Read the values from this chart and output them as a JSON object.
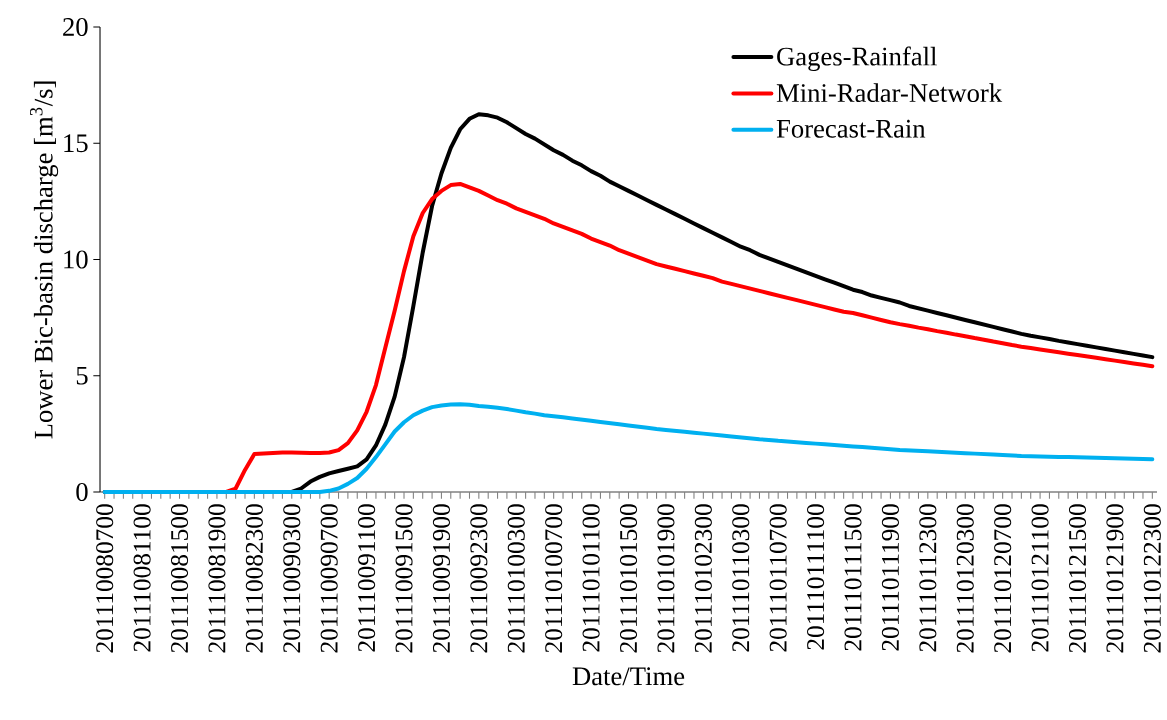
{
  "chart_data": {
    "type": "line",
    "xlabel": "Date/Time",
    "ylabel": "Lower Bic-basin discharge [m$^{3}$/s]",
    "categories": [
      "201110080700",
      null,
      null,
      null,
      "201110081100",
      null,
      null,
      null,
      "201110081500",
      null,
      null,
      null,
      "201110081900",
      null,
      null,
      null,
      "201110082300",
      null,
      null,
      null,
      "201110090300",
      null,
      null,
      null,
      "201110090700",
      null,
      null,
      null,
      "201110091100",
      null,
      null,
      null,
      "201110091500",
      null,
      null,
      null,
      "201110091900",
      null,
      null,
      null,
      "201110092300",
      null,
      null,
      null,
      "201110100300",
      null,
      null,
      null,
      "201110100700",
      null,
      null,
      null,
      "201110101100",
      null,
      null,
      null,
      "201110101500",
      null,
      null,
      null,
      "201110101900",
      null,
      null,
      null,
      "201110102300",
      null,
      null,
      null,
      "201110110300",
      null,
      null,
      null,
      "201110110700",
      null,
      null,
      null,
      "201110111100",
      null,
      null,
      null,
      "201110111500",
      null,
      null,
      null,
      "201110111900",
      null,
      null,
      null,
      "201110112300",
      null,
      null,
      null,
      "201110120300",
      null,
      null,
      null,
      "201110120700",
      null,
      null,
      null,
      "201110121100",
      null,
      null,
      null,
      "201110121500",
      null,
      null,
      null,
      "201110121900",
      null,
      null,
      null,
      "201110122300"
    ],
    "series": [
      {
        "name": "Gages-Rainfall",
        "color": "#000000",
        "values": [
          0,
          0,
          0,
          0,
          0,
          0,
          0,
          0,
          0,
          0,
          0,
          0,
          0,
          0,
          0,
          0,
          0,
          0,
          0,
          0,
          0,
          0.15,
          0.45,
          0.65,
          0.8,
          0.9,
          1.0,
          1.1,
          1.4,
          2.0,
          2.9,
          4.1,
          5.8,
          8.0,
          10.3,
          12.3,
          13.7,
          14.8,
          15.6,
          16.05,
          16.25,
          16.2,
          16.1,
          15.9,
          15.65,
          15.4,
          15.2,
          14.95,
          14.7,
          14.5,
          14.25,
          14.05,
          13.8,
          13.6,
          13.35,
          13.15,
          12.95,
          12.75,
          12.55,
          12.35,
          12.15,
          11.95,
          11.75,
          11.55,
          11.35,
          11.15,
          10.95,
          10.75,
          10.55,
          10.4,
          10.2,
          10.05,
          9.9,
          9.75,
          9.6,
          9.45,
          9.3,
          9.15,
          9.0,
          8.85,
          8.7,
          8.6,
          8.45,
          8.35,
          8.25,
          8.15,
          8.0,
          7.9,
          7.8,
          7.7,
          7.6,
          7.5,
          7.4,
          7.3,
          7.2,
          7.1,
          7.0,
          6.9,
          6.8,
          6.72,
          6.65,
          6.58,
          6.5,
          6.43,
          6.36,
          6.29,
          6.22,
          6.15,
          6.08,
          6.01,
          5.94,
          5.87,
          5.8
        ]
      },
      {
        "name": "Mini-Radar-Network",
        "color": "#ff0000",
        "values": [
          null,
          null,
          null,
          null,
          null,
          null,
          null,
          null,
          null,
          null,
          null,
          null,
          0,
          0,
          0.15,
          0.95,
          1.63,
          1.66,
          1.68,
          1.7,
          1.7,
          1.69,
          1.68,
          1.68,
          1.7,
          1.8,
          2.1,
          2.65,
          3.45,
          4.6,
          6.2,
          7.8,
          9.5,
          11.0,
          12.0,
          12.6,
          12.95,
          13.2,
          13.25,
          13.1,
          12.95,
          12.75,
          12.55,
          12.4,
          12.2,
          12.05,
          11.9,
          11.75,
          11.55,
          11.4,
          11.25,
          11.1,
          10.9,
          10.75,
          10.6,
          10.4,
          10.25,
          10.1,
          9.95,
          9.8,
          9.7,
          9.6,
          9.5,
          9.4,
          9.3,
          9.2,
          9.05,
          8.95,
          8.85,
          8.75,
          8.65,
          8.55,
          8.45,
          8.35,
          8.25,
          8.15,
          8.05,
          7.95,
          7.85,
          7.75,
          7.7,
          7.6,
          7.5,
          7.4,
          7.3,
          7.22,
          7.15,
          7.07,
          7.0,
          6.92,
          6.85,
          6.77,
          6.7,
          6.62,
          6.55,
          6.47,
          6.4,
          6.32,
          6.25,
          6.19,
          6.13,
          6.07,
          6.01,
          5.95,
          5.89,
          5.83,
          5.77,
          5.71,
          5.65,
          5.59,
          5.53,
          5.47,
          5.41
        ]
      },
      {
        "name": "Forecast-Rain",
        "color": "#00b0f0",
        "values": [
          0,
          0,
          0,
          0,
          0,
          0,
          0,
          0,
          0,
          0,
          0,
          0,
          0,
          0,
          0,
          0,
          0,
          0,
          0,
          0,
          0,
          0,
          0,
          0,
          0.05,
          0.15,
          0.35,
          0.6,
          1.0,
          1.5,
          2.05,
          2.6,
          3.0,
          3.3,
          3.5,
          3.65,
          3.72,
          3.76,
          3.77,
          3.75,
          3.7,
          3.67,
          3.62,
          3.57,
          3.5,
          3.43,
          3.37,
          3.3,
          3.26,
          3.21,
          3.16,
          3.11,
          3.06,
          3.01,
          2.96,
          2.91,
          2.86,
          2.81,
          2.76,
          2.71,
          2.67,
          2.63,
          2.59,
          2.55,
          2.51,
          2.47,
          2.43,
          2.39,
          2.35,
          2.31,
          2.27,
          2.24,
          2.2,
          2.17,
          2.14,
          2.11,
          2.08,
          2.05,
          2.02,
          1.99,
          1.96,
          1.93,
          1.9,
          1.87,
          1.84,
          1.81,
          1.79,
          1.77,
          1.75,
          1.73,
          1.71,
          1.69,
          1.67,
          1.65,
          1.63,
          1.61,
          1.59,
          1.57,
          1.55,
          1.54,
          1.53,
          1.52,
          1.51,
          1.5,
          1.49,
          1.48,
          1.47,
          1.46,
          1.45,
          1.44,
          1.43,
          1.42,
          1.41
        ]
      }
    ],
    "ylim": [
      0,
      20
    ],
    "yticks": [
      0,
      5,
      10,
      15,
      20
    ],
    "grid": false,
    "legend": "top right",
    "marker": "none",
    "line_style": "solid"
  }
}
